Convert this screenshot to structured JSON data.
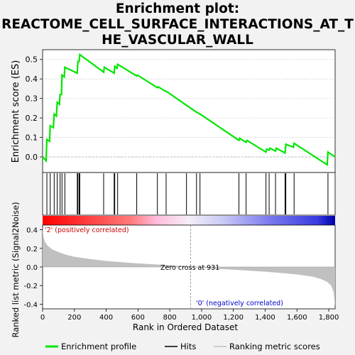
{
  "title": "Enrichment plot:\nREACTOME_CELL_SURFACE_INTERACTIONS_AT_T\nHE_VASCULAR_WALL",
  "chart_data": {
    "type": "line",
    "x_range": [
      0,
      1840
    ],
    "panels": {
      "es": {
        "ylabel": "Enrichment score (ES)",
        "ylim": [
          -0.08,
          0.55
        ],
        "yticks": [
          "0.0",
          "0.1",
          "0.2",
          "0.3",
          "0.4",
          "0.5"
        ],
        "ytick_values": [
          0.0,
          0.1,
          0.2,
          0.3,
          0.4,
          0.5
        ],
        "series_name": "Enrichment profile",
        "color": "#00e600",
        "points": [
          [
            0,
            0.0
          ],
          [
            22,
            -0.02
          ],
          [
            27,
            0.09
          ],
          [
            44,
            0.08
          ],
          [
            48,
            0.16
          ],
          [
            68,
            0.15
          ],
          [
            73,
            0.22
          ],
          [
            87,
            0.21
          ],
          [
            92,
            0.28
          ],
          [
            106,
            0.27
          ],
          [
            110,
            0.32
          ],
          [
            119,
            0.32
          ],
          [
            122,
            0.42
          ],
          [
            136,
            0.41
          ],
          [
            140,
            0.46
          ],
          [
            218,
            0.43
          ],
          [
            222,
            0.49
          ],
          [
            230,
            0.49
          ],
          [
            234,
            0.525
          ],
          [
            384,
            0.435
          ],
          [
            388,
            0.46
          ],
          [
            450,
            0.43
          ],
          [
            454,
            0.465
          ],
          [
            468,
            0.455
          ],
          [
            472,
            0.475
          ],
          [
            592,
            0.415
          ],
          [
            596,
            0.42
          ],
          [
            722,
            0.355
          ],
          [
            726,
            0.36
          ],
          [
            777,
            0.335
          ],
          [
            781,
            0.335
          ],
          [
            905,
            0.265
          ],
          [
            968,
            0.23
          ],
          [
            990,
            0.22
          ],
          [
            1235,
            0.085
          ],
          [
            1240,
            0.095
          ],
          [
            1280,
            0.075
          ],
          [
            1285,
            0.085
          ],
          [
            1405,
            0.025
          ],
          [
            1410,
            0.04
          ],
          [
            1425,
            0.035
          ],
          [
            1430,
            0.045
          ],
          [
            1465,
            0.03
          ],
          [
            1470,
            0.045
          ],
          [
            1525,
            0.02
          ],
          [
            1530,
            0.065
          ],
          [
            1578,
            0.05
          ],
          [
            1582,
            0.07
          ],
          [
            1790,
            -0.04
          ],
          [
            1795,
            0.025
          ],
          [
            1840,
            0.0
          ]
        ]
      },
      "hits": {
        "label": "Hits",
        "positions": [
          27,
          48,
          73,
          92,
          110,
          122,
          140,
          218,
          222,
          230,
          234,
          384,
          450,
          454,
          472,
          592,
          722,
          777,
          905,
          968,
          990,
          1235,
          1280,
          1405,
          1425,
          1465,
          1525,
          1530,
          1582,
          1795
        ]
      },
      "metric": {
        "ylabel": "Ranked list metric (Signal2Noise)",
        "xlabel": "Rank in Ordered Dataset",
        "ylim": [
          -0.45,
          0.45
        ],
        "yticks": [
          "-0.4",
          "-0.2",
          "0.0",
          "0.2",
          "0.4"
        ],
        "ytick_values": [
          -0.4,
          -0.2,
          0.0,
          0.2,
          0.4
        ],
        "xticks": [
          "0",
          "200",
          "400",
          "600",
          "800",
          "1,000",
          "1,200",
          "1,400",
          "1,600",
          "1,800"
        ],
        "xtick_values": [
          0,
          200,
          400,
          600,
          800,
          1000,
          1200,
          1400,
          1600,
          1800
        ],
        "series_name": "Ranking metric scores",
        "fill": "#c0c0c0",
        "zero_cross": 931,
        "zero_cross_label": "Zero cross at 931",
        "pos_label": "'2' (positively correlated)",
        "neg_label": "'0' (negatively correlated)",
        "points": [
          [
            0,
            0.42
          ],
          [
            5,
            0.33
          ],
          [
            15,
            0.27
          ],
          [
            30,
            0.23
          ],
          [
            60,
            0.19
          ],
          [
            100,
            0.16
          ],
          [
            150,
            0.13
          ],
          [
            200,
            0.11
          ],
          [
            300,
            0.085
          ],
          [
            400,
            0.065
          ],
          [
            500,
            0.05
          ],
          [
            600,
            0.038
          ],
          [
            700,
            0.028
          ],
          [
            800,
            0.018
          ],
          [
            900,
            0.006
          ],
          [
            931,
            0.0
          ],
          [
            1000,
            -0.01
          ],
          [
            1100,
            -0.02
          ],
          [
            1200,
            -0.03
          ],
          [
            1300,
            -0.04
          ],
          [
            1400,
            -0.05
          ],
          [
            1500,
            -0.065
          ],
          [
            1600,
            -0.08
          ],
          [
            1700,
            -0.105
          ],
          [
            1750,
            -0.13
          ],
          [
            1790,
            -0.16
          ],
          [
            1815,
            -0.2
          ],
          [
            1830,
            -0.27
          ],
          [
            1838,
            -0.4
          ],
          [
            1840,
            -0.42
          ]
        ]
      }
    },
    "legend": [
      {
        "label": "Enrichment profile",
        "color": "#00e600"
      },
      {
        "label": "Hits",
        "color": "#000000"
      },
      {
        "label": "Ranking metric scores",
        "color": "#c0c0c0"
      }
    ]
  }
}
